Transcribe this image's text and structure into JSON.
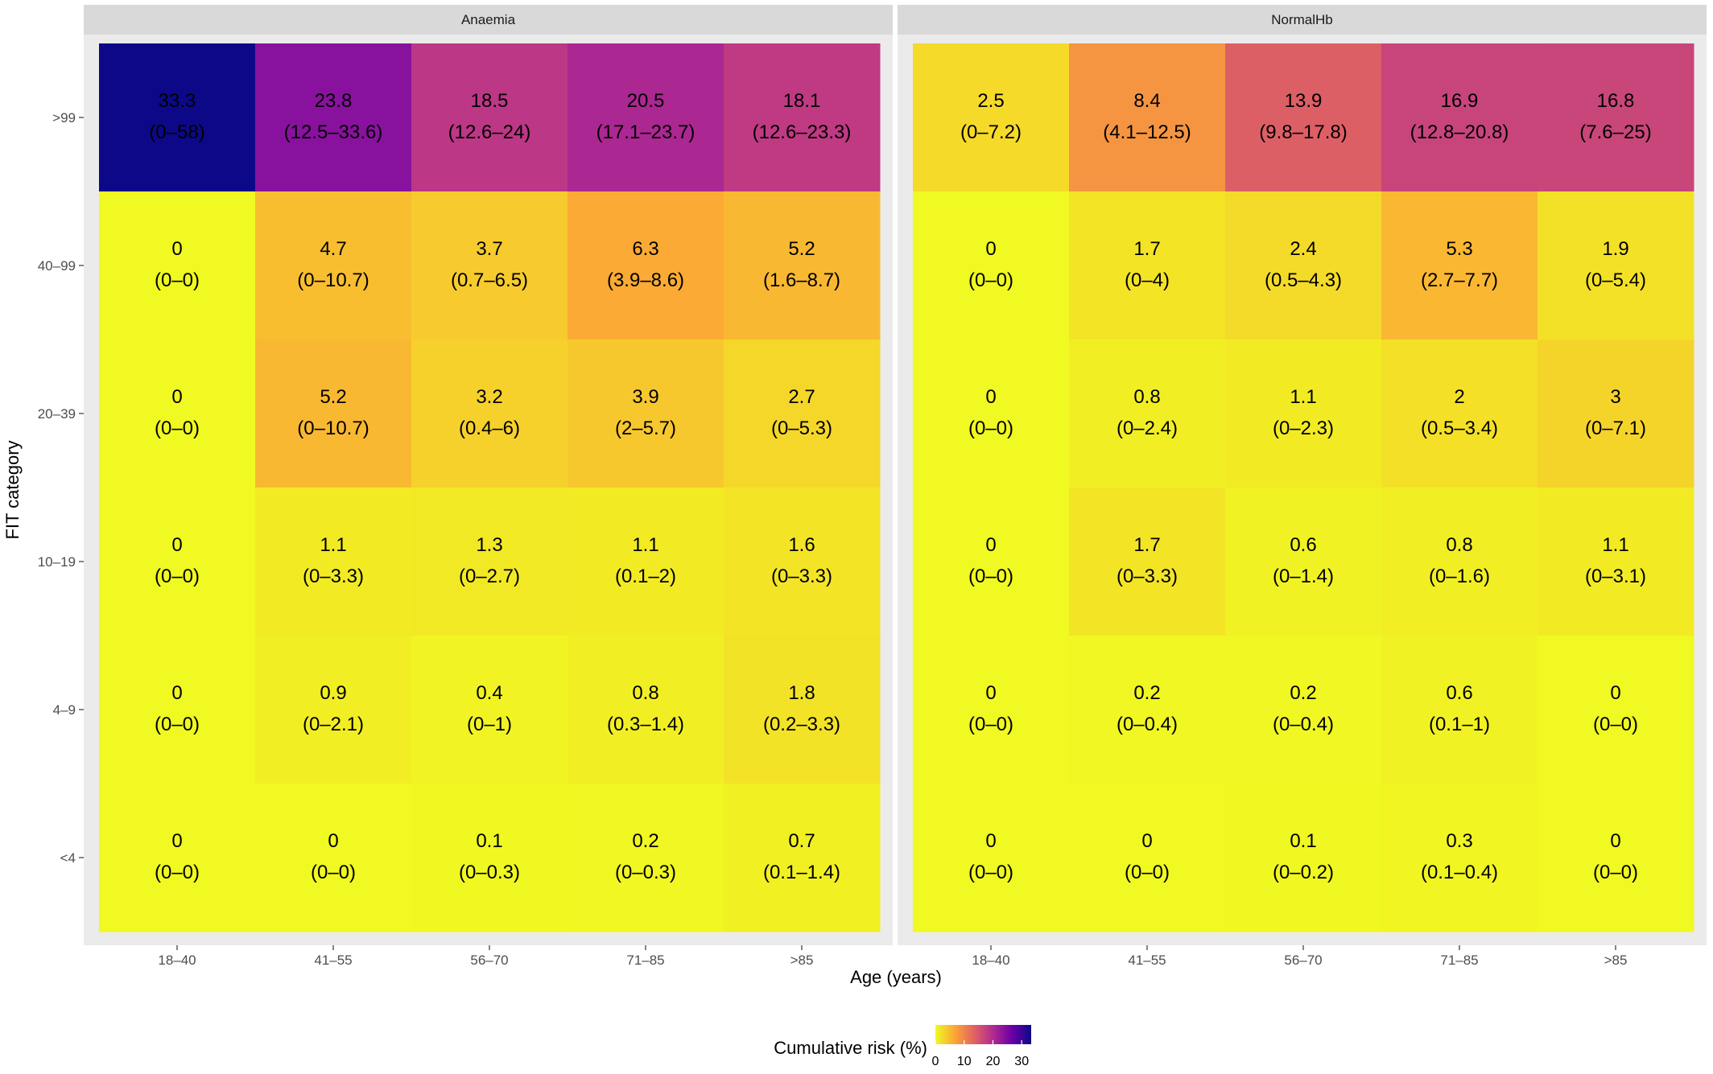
{
  "chart_data": {
    "type": "heatmap",
    "xlabel": "Age (years)",
    "ylabel": "FIT category",
    "x_categories": [
      "18–40",
      "41–55",
      "56–70",
      "71–85",
      ">85"
    ],
    "y_categories": [
      ">99",
      "40–99",
      "20–39",
      "10–19",
      "4–9",
      "<4"
    ],
    "legend": {
      "title": "Cumulative risk (%)",
      "ticks": [
        "0",
        "10",
        "20",
        "30"
      ],
      "tick_values": [
        0,
        10,
        20,
        30
      ],
      "range": [
        0,
        33.3
      ],
      "placement": "bottom",
      "colors": [
        "#F0F921",
        "#FCA636",
        "#E16462",
        "#B12A90",
        "#6A00A8",
        "#0D0887"
      ]
    },
    "panels": [
      {
        "name": "Anaemia",
        "rows": [
          {
            "y": ">99",
            "cells": [
              {
                "value": 33.3,
                "ci": "(0–58)"
              },
              {
                "value": 23.8,
                "ci": "(12.5–33.6)"
              },
              {
                "value": 18.5,
                "ci": "(12.6–24)"
              },
              {
                "value": 20.5,
                "ci": "(17.1–23.7)"
              },
              {
                "value": 18.1,
                "ci": "(12.6–23.3)"
              }
            ]
          },
          {
            "y": "40–99",
            "cells": [
              {
                "value": 0,
                "ci": "(0–0)"
              },
              {
                "value": 4.7,
                "ci": "(0–10.7)"
              },
              {
                "value": 3.7,
                "ci": "(0.7–6.5)"
              },
              {
                "value": 6.3,
                "ci": "(3.9–8.6)"
              },
              {
                "value": 5.2,
                "ci": "(1.6–8.7)"
              }
            ]
          },
          {
            "y": "20–39",
            "cells": [
              {
                "value": 0,
                "ci": "(0–0)"
              },
              {
                "value": 5.2,
                "ci": "(0–10.7)"
              },
              {
                "value": 3.2,
                "ci": "(0.4–6)"
              },
              {
                "value": 3.9,
                "ci": "(2–5.7)"
              },
              {
                "value": 2.7,
                "ci": "(0–5.3)"
              }
            ]
          },
          {
            "y": "10–19",
            "cells": [
              {
                "value": 0,
                "ci": "(0–0)"
              },
              {
                "value": 1.1,
                "ci": "(0–3.3)"
              },
              {
                "value": 1.3,
                "ci": "(0–2.7)"
              },
              {
                "value": 1.1,
                "ci": "(0.1–2)"
              },
              {
                "value": 1.6,
                "ci": "(0–3.3)"
              }
            ]
          },
          {
            "y": "4–9",
            "cells": [
              {
                "value": 0,
                "ci": "(0–0)"
              },
              {
                "value": 0.9,
                "ci": "(0–2.1)"
              },
              {
                "value": 0.4,
                "ci": "(0–1)"
              },
              {
                "value": 0.8,
                "ci": "(0.3–1.4)"
              },
              {
                "value": 1.8,
                "ci": "(0.2–3.3)"
              }
            ]
          },
          {
            "y": "<4",
            "cells": [
              {
                "value": 0,
                "ci": "(0–0)"
              },
              {
                "value": 0,
                "ci": "(0–0)"
              },
              {
                "value": 0.1,
                "ci": "(0–0.3)"
              },
              {
                "value": 0.2,
                "ci": "(0–0.3)"
              },
              {
                "value": 0.7,
                "ci": "(0.1–1.4)"
              }
            ]
          }
        ]
      },
      {
        "name": "NormalHb",
        "rows": [
          {
            "y": ">99",
            "cells": [
              {
                "value": 2.5,
                "ci": "(0–7.2)"
              },
              {
                "value": 8.4,
                "ci": "(4.1–12.5)"
              },
              {
                "value": 13.9,
                "ci": "(9.8–17.8)"
              },
              {
                "value": 16.9,
                "ci": "(12.8–20.8)"
              },
              {
                "value": 16.8,
                "ci": "(7.6–25)"
              }
            ]
          },
          {
            "y": "40–99",
            "cells": [
              {
                "value": 0,
                "ci": "(0–0)"
              },
              {
                "value": 1.7,
                "ci": "(0–4)"
              },
              {
                "value": 2.4,
                "ci": "(0.5–4.3)"
              },
              {
                "value": 5.3,
                "ci": "(2.7–7.7)"
              },
              {
                "value": 1.9,
                "ci": "(0–5.4)"
              }
            ]
          },
          {
            "y": "20–39",
            "cells": [
              {
                "value": 0,
                "ci": "(0–0)"
              },
              {
                "value": 0.8,
                "ci": "(0–2.4)"
              },
              {
                "value": 1.1,
                "ci": "(0–2.3)"
              },
              {
                "value": 2,
                "ci": "(0.5–3.4)"
              },
              {
                "value": 3,
                "ci": "(0–7.1)"
              }
            ]
          },
          {
            "y": "10–19",
            "cells": [
              {
                "value": 0,
                "ci": "(0–0)"
              },
              {
                "value": 1.7,
                "ci": "(0–3.3)"
              },
              {
                "value": 0.6,
                "ci": "(0–1.4)"
              },
              {
                "value": 0.8,
                "ci": "(0–1.6)"
              },
              {
                "value": 1.1,
                "ci": "(0–3.1)"
              }
            ]
          },
          {
            "y": "4–9",
            "cells": [
              {
                "value": 0,
                "ci": "(0–0)"
              },
              {
                "value": 0.2,
                "ci": "(0–0.4)"
              },
              {
                "value": 0.2,
                "ci": "(0–0.4)"
              },
              {
                "value": 0.6,
                "ci": "(0.1–1)"
              },
              {
                "value": 0,
                "ci": "(0–0)"
              }
            ]
          },
          {
            "y": "<4",
            "cells": [
              {
                "value": 0,
                "ci": "(0–0)"
              },
              {
                "value": 0,
                "ci": "(0–0)"
              },
              {
                "value": 0.1,
                "ci": "(0–0.2)"
              },
              {
                "value": 0.3,
                "ci": "(0.1–0.4)"
              },
              {
                "value": 0,
                "ci": "(0–0)"
              }
            ]
          }
        ]
      }
    ]
  }
}
